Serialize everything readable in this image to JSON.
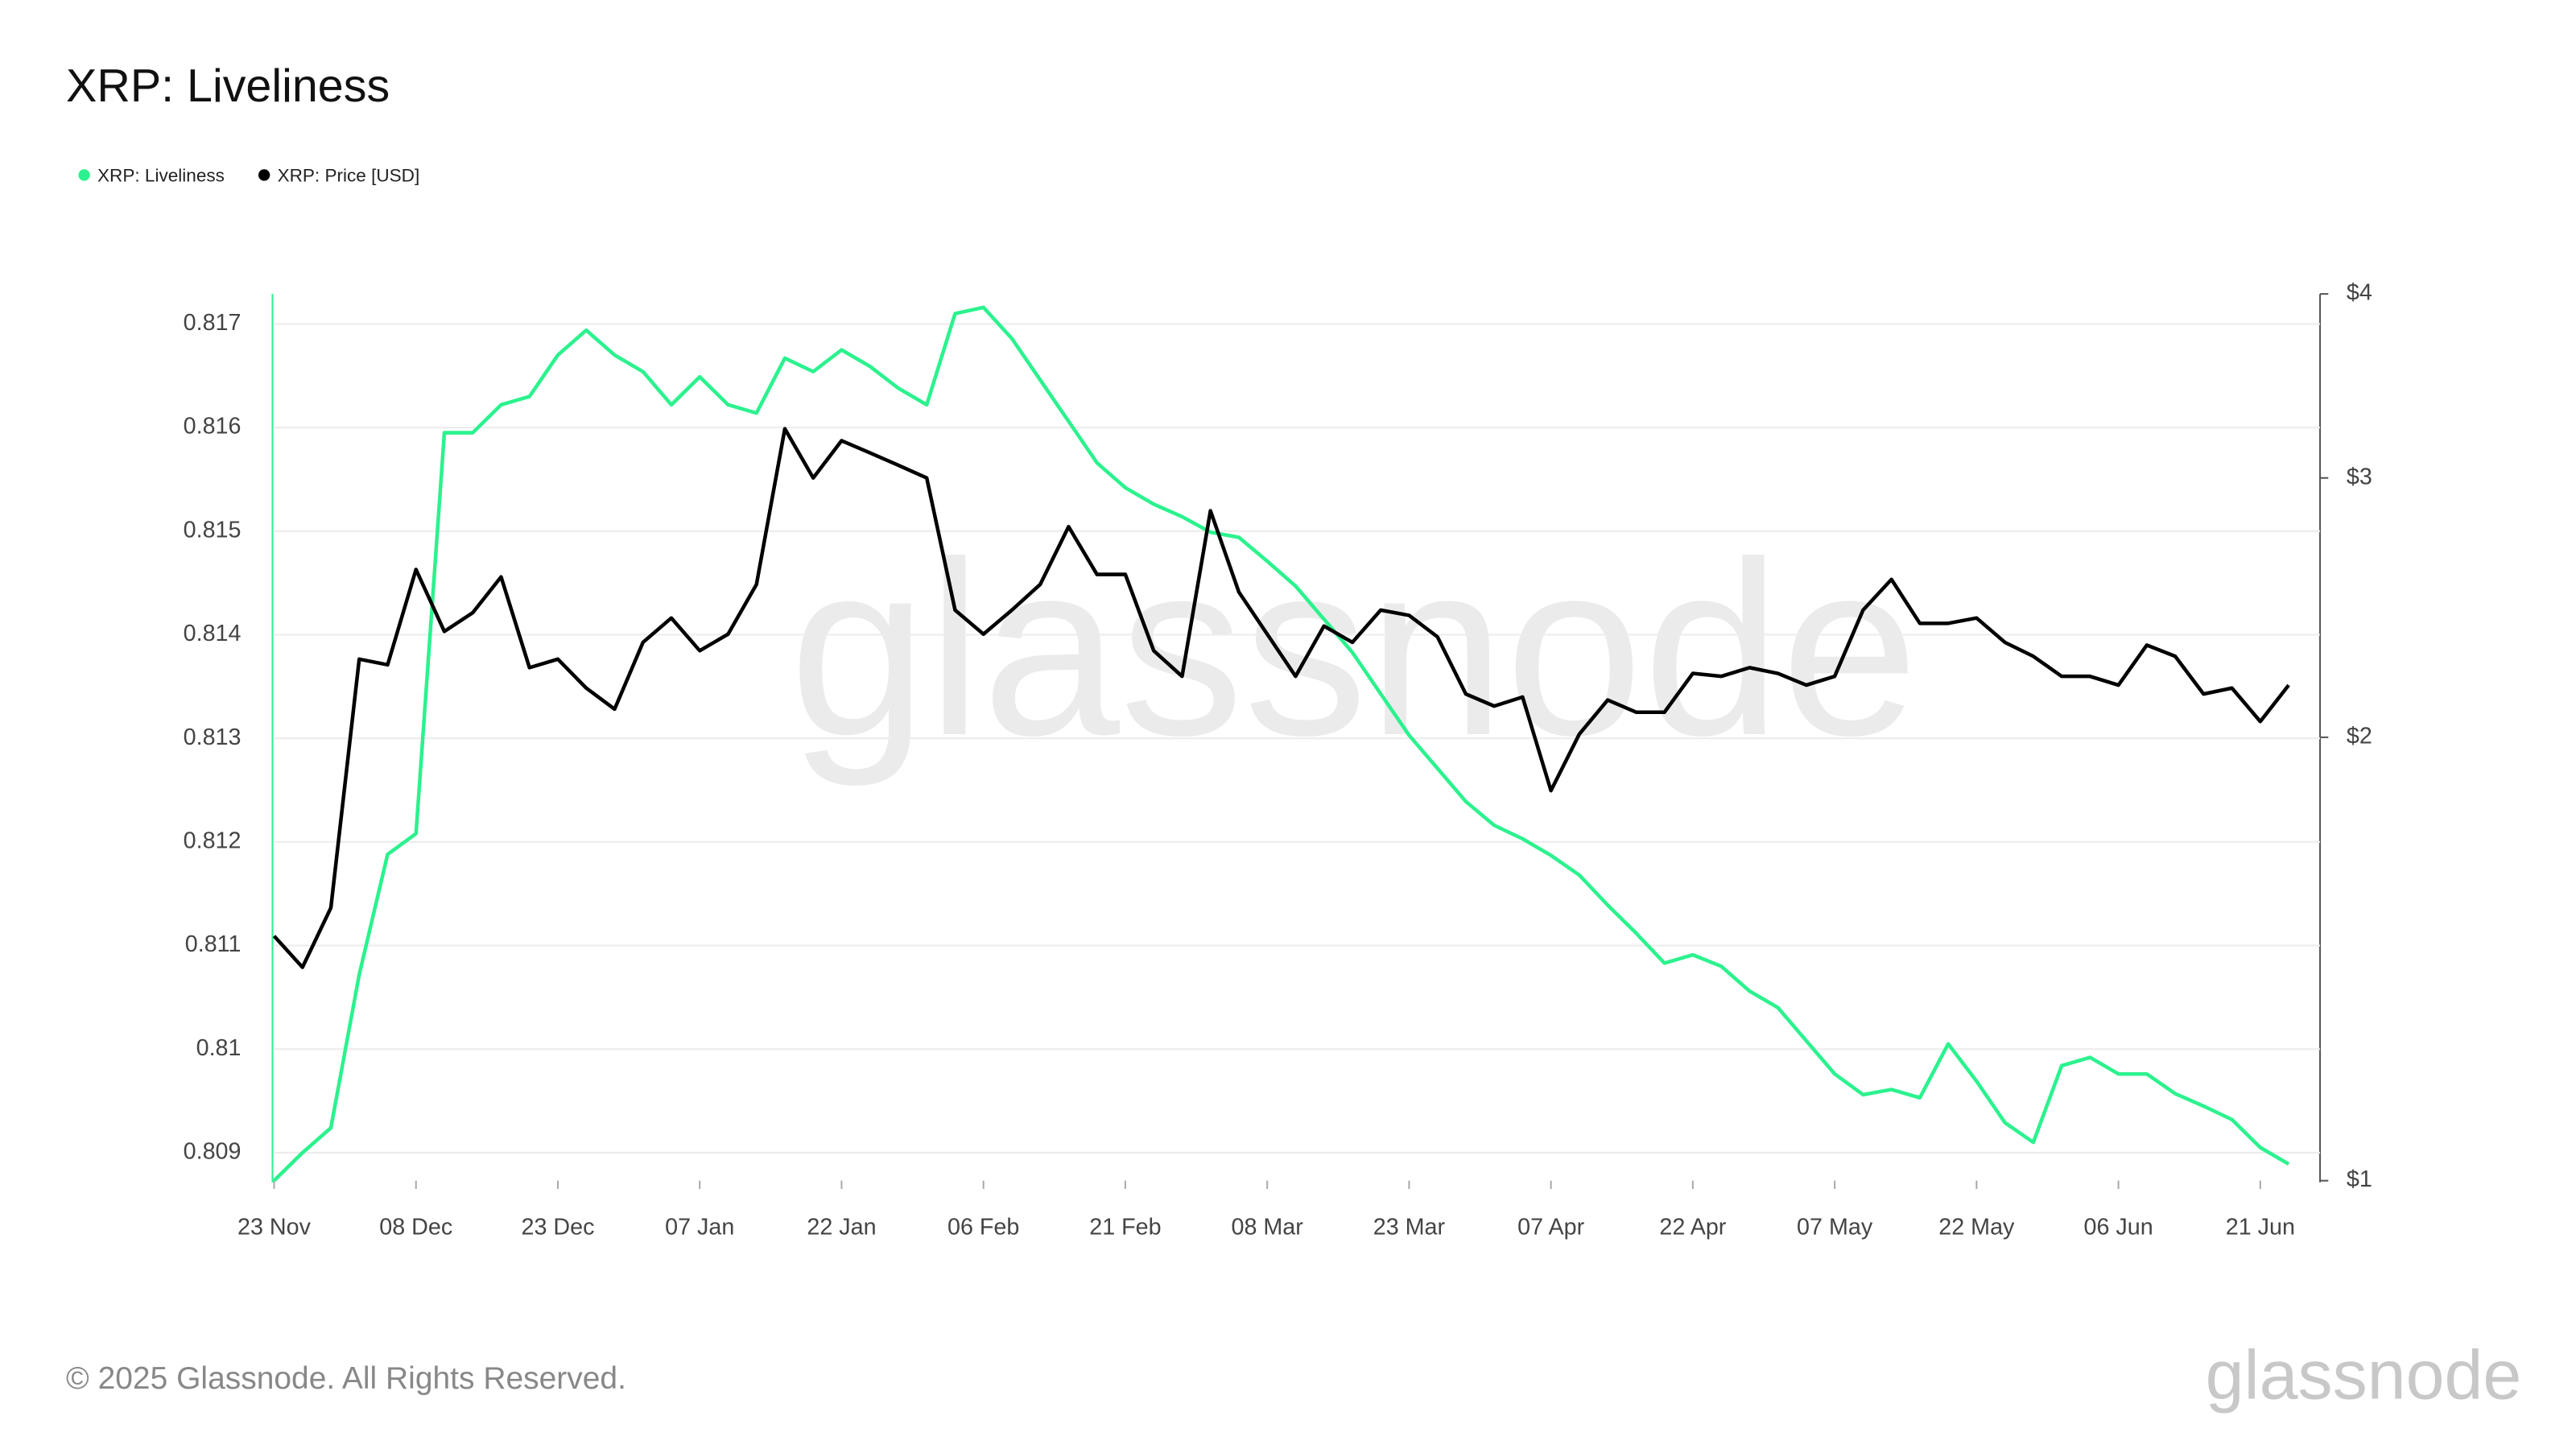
{
  "chart_data": {
    "type": "line",
    "title": "XRP: Liveliness",
    "watermark": "glassnode",
    "footer": "© 2025 Glassnode. All Rights Reserved.",
    "logo": "glassnode",
    "categories": [
      "23 Nov",
      "26 Nov",
      "29 Nov",
      "02 Dec",
      "05 Dec",
      "08 Dec",
      "11 Dec",
      "14 Dec",
      "17 Dec",
      "20 Dec",
      "23 Dec",
      "26 Dec",
      "29 Dec",
      "01 Jan",
      "04 Jan",
      "07 Jan",
      "10 Jan",
      "13 Jan",
      "16 Jan",
      "19 Jan",
      "22 Jan",
      "25 Jan",
      "28 Jan",
      "31 Jan",
      "03 Feb",
      "06 Feb",
      "09 Feb",
      "12 Feb",
      "15 Feb",
      "18 Feb",
      "21 Feb",
      "24 Feb",
      "27 Feb",
      "02 Mar",
      "05 Mar",
      "08 Mar",
      "11 Mar",
      "14 Mar",
      "17 Mar",
      "20 Mar",
      "23 Mar",
      "26 Mar",
      "29 Mar",
      "01 Apr",
      "04 Apr",
      "07 Apr",
      "10 Apr",
      "13 Apr",
      "16 Apr",
      "19 Apr",
      "22 Apr",
      "25 Apr",
      "28 Apr",
      "01 May",
      "04 May",
      "07 May",
      "10 May",
      "13 May",
      "16 May",
      "19 May",
      "22 May",
      "25 May",
      "28 May",
      "31 May",
      "03 Jun",
      "06 Jun",
      "09 Jun",
      "12 Jun",
      "15 Jun",
      "18 Jun",
      "21 Jun",
      "24 Jun"
    ],
    "xticks": [
      "23 Nov",
      "08 Dec",
      "23 Dec",
      "07 Jan",
      "22 Jan",
      "06 Feb",
      "21 Feb",
      "08 Mar",
      "23 Mar",
      "07 Apr",
      "22 Apr",
      "07 May",
      "22 May",
      "06 Jun",
      "21 Jun"
    ],
    "ylim": [
      0.80873,
      0.81729
    ],
    "yticks": [
      0.809,
      0.81,
      0.811,
      0.812,
      0.813,
      0.814,
      0.815,
      0.816,
      0.817
    ],
    "y2lim": [
      1,
      4
    ],
    "y2log": true,
    "y2ticks": [
      {
        "value": 1,
        "label": "$1"
      },
      {
        "value": 2,
        "label": "$2"
      },
      {
        "value": 3,
        "label": "$3"
      },
      {
        "value": 4,
        "label": "$4"
      }
    ],
    "grid": true,
    "legend": "top-left",
    "series": [
      {
        "name": "XRP: Liveliness",
        "color": "#2bf28e",
        "axis": "y",
        "values": [
          0.80873,
          0.809,
          0.80924,
          0.81072,
          0.81188,
          0.81208,
          0.81595,
          0.81595,
          0.81622,
          0.8163,
          0.8167,
          0.81694,
          0.8167,
          0.81654,
          0.81622,
          0.81649,
          0.81622,
          0.81614,
          0.81667,
          0.81654,
          0.81675,
          0.81659,
          0.81638,
          0.81622,
          0.8171,
          0.81716,
          0.81686,
          0.81646,
          0.81606,
          0.81566,
          0.81542,
          0.81526,
          0.81514,
          0.81499,
          0.81494,
          0.81471,
          0.81447,
          0.81415,
          0.81383,
          0.81343,
          0.81303,
          0.81271,
          0.81239,
          0.81216,
          0.81203,
          0.81187,
          0.81168,
          0.81139,
          0.81112,
          0.81083,
          0.81091,
          0.8108,
          0.81056,
          0.8104,
          0.81008,
          0.80976,
          0.80956,
          0.80961,
          0.80953,
          0.81005,
          0.80969,
          0.80929,
          0.8091,
          0.80984,
          0.80992,
          0.80976,
          0.80976,
          0.80957,
          0.80945,
          0.80932,
          0.80905,
          0.80889
        ]
      },
      {
        "name": "XRP: Price [USD]",
        "color": "#000000",
        "axis": "y2",
        "values": [
          1.466,
          1.396,
          1.532,
          2.26,
          2.24,
          2.6,
          2.36,
          2.43,
          2.57,
          2.23,
          2.26,
          2.16,
          2.09,
          2.32,
          2.41,
          2.29,
          2.35,
          2.54,
          3.24,
          3.0,
          3.18,
          3.12,
          3.06,
          3.0,
          2.44,
          2.35,
          2.44,
          2.54,
          2.78,
          2.58,
          2.58,
          2.29,
          2.2,
          2.85,
          2.51,
          2.35,
          2.2,
          2.38,
          2.32,
          2.44,
          2.42,
          2.34,
          2.14,
          2.1,
          2.13,
          1.84,
          2.01,
          2.12,
          2.08,
          2.08,
          2.21,
          2.2,
          2.23,
          2.21,
          2.17,
          2.2,
          2.44,
          2.56,
          2.39,
          2.39,
          2.41,
          2.32,
          2.27,
          2.2,
          2.2,
          2.17,
          2.31,
          2.27,
          2.14,
          2.16,
          2.05,
          2.17
        ]
      }
    ]
  }
}
